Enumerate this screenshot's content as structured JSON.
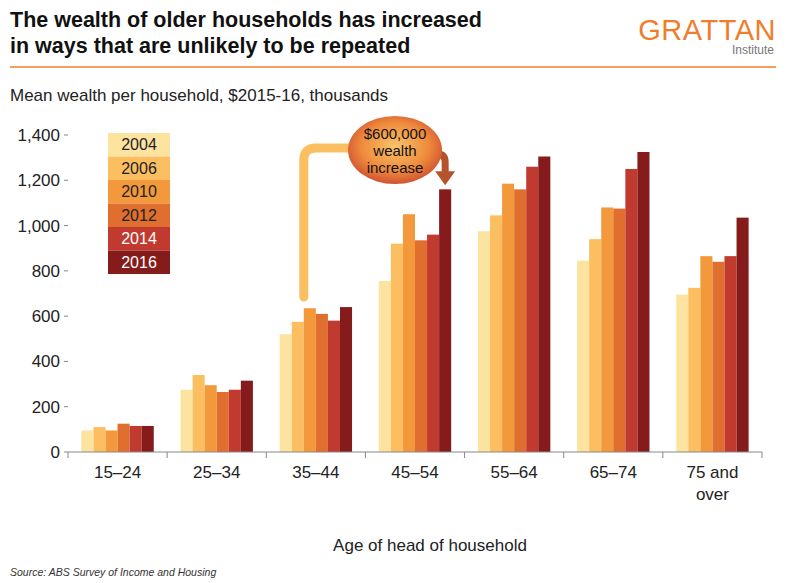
{
  "chart_data": {
    "type": "bar",
    "title": "The wealth of older households has increased in ways that are unlikely to be repeated",
    "subtitle": "Mean wealth per household, $2015-16, thousands",
    "x_label": "Age of head of household",
    "source": "Source: ABS Survey of Income and Housing",
    "logo": {
      "name": "GRATTAN",
      "sub": "Institute"
    },
    "annotation": "$600,000 wealth increase",
    "categories": [
      "15–24",
      "25–34",
      "35–44",
      "45–54",
      "55–64",
      "65–74",
      "75 and over"
    ],
    "series": [
      {
        "name": "2004",
        "color": "#fde3a0",
        "values": [
          95,
          275,
          520,
          755,
          975,
          845,
          695
        ]
      },
      {
        "name": "2006",
        "color": "#fbbf62",
        "values": [
          110,
          340,
          575,
          920,
          1045,
          940,
          725
        ]
      },
      {
        "name": "2010",
        "color": "#f4993b",
        "values": [
          95,
          295,
          635,
          1050,
          1185,
          1080,
          865
        ]
      },
      {
        "name": "2012",
        "color": "#e06f2f",
        "values": [
          125,
          265,
          610,
          935,
          1160,
          1075,
          840
        ]
      },
      {
        "name": "2014",
        "color": "#c03a2f",
        "values": [
          115,
          275,
          580,
          960,
          1260,
          1250,
          865
        ]
      },
      {
        "name": "2016",
        "color": "#851b1b",
        "values": [
          115,
          315,
          640,
          1160,
          1305,
          1325,
          1035
        ]
      }
    ],
    "ylim": [
      0,
      1400
    ],
    "yticks": [
      0,
      200,
      400,
      600,
      800,
      {
        "value": 1000,
        "label": "1,000"
      },
      {
        "value": 1200,
        "label": "1,200"
      },
      {
        "value": 1400,
        "label": "1,400"
      }
    ],
    "grid": false,
    "legend": "top-left"
  }
}
